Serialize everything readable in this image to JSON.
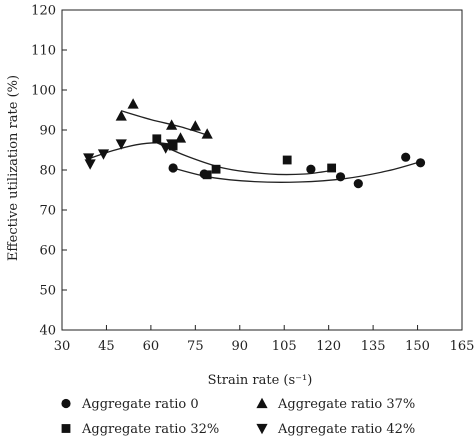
{
  "chart_data": {
    "type": "scatter",
    "title": "",
    "xlabel": "Strain rate (s⁻¹)",
    "ylabel": "Effective utilization rate (%)",
    "xlim": [
      30,
      165
    ],
    "ylim": [
      40,
      120
    ],
    "xticks": [
      "30",
      "45",
      "60",
      "75",
      "90",
      "105",
      "120",
      "135",
      "150",
      "165"
    ],
    "yticks": [
      "40",
      "50",
      "60",
      "70",
      "80",
      "90",
      "100",
      "110",
      "120"
    ],
    "grid": false,
    "legend_position": "bottom",
    "series": [
      {
        "name": "Aggregate ratio 0",
        "marker": "circle",
        "points": [
          [
            67.5,
            80.5
          ],
          [
            78,
            79
          ],
          [
            114,
            80.2
          ],
          [
            124,
            78.3
          ],
          [
            130,
            76.6
          ],
          [
            146,
            83.2
          ],
          [
            151,
            81.8
          ]
        ],
        "fit": [
          [
            67,
            80.6
          ],
          [
            80,
            78.2
          ],
          [
            95,
            77.1
          ],
          [
            110,
            77.0
          ],
          [
            125,
            77.8
          ],
          [
            140,
            79.8
          ],
          [
            152,
            82.3
          ]
        ]
      },
      {
        "name": "Aggregate ratio 37%",
        "marker": "triangle-up",
        "points": [
          [
            50,
            93.5
          ],
          [
            54,
            96.5
          ],
          [
            67,
            91.2
          ],
          [
            70,
            88
          ],
          [
            75,
            91
          ],
          [
            79,
            89
          ]
        ],
        "fit": [
          [
            50,
            94.8
          ],
          [
            60,
            92.6
          ],
          [
            70,
            90.8
          ],
          [
            80,
            88.5
          ]
        ]
      },
      {
        "name": "Aggregate ratio 32%",
        "marker": "square",
        "points": [
          [
            62,
            87.8
          ],
          [
            67.5,
            86
          ],
          [
            79,
            78.8
          ],
          [
            82,
            80.2
          ],
          [
            106,
            82.5
          ],
          [
            121,
            80.5
          ]
        ],
        "fit": [
          [
            62,
            86.8
          ],
          [
            72,
            83.5
          ],
          [
            85,
            80.4
          ],
          [
            100,
            79.0
          ],
          [
            112,
            79.0
          ],
          [
            122,
            80.0
          ]
        ]
      },
      {
        "name": "Aggregate ratio 42%",
        "marker": "triangle-down",
        "points": [
          [
            39,
            83
          ],
          [
            39.5,
            81.5
          ],
          [
            44,
            84
          ],
          [
            50,
            86.5
          ],
          [
            65,
            85.5
          ],
          [
            67,
            86.5
          ]
        ],
        "fit": [
          [
            39,
            82.8
          ],
          [
            47,
            84.8
          ],
          [
            55,
            86.3
          ],
          [
            62,
            86.8
          ],
          [
            68,
            86.3
          ]
        ]
      }
    ]
  }
}
